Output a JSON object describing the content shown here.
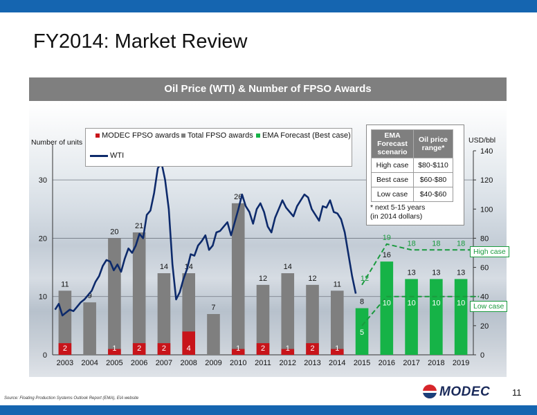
{
  "slide": {
    "title": "FY2014: Market Review",
    "panel_title": "Oil Price (WTI) & Number of FPSO Awards",
    "source": "Source: Floating Production Systems Outlook Report (EMA), EIA website",
    "page_number": "11",
    "logo_text": "MODEC"
  },
  "colors": {
    "header_bar": "#1565b0",
    "modec": "#c8141a",
    "total": "#7f7f7f",
    "forecast": "#16b347",
    "wti": "#0d2a6b",
    "forecast_dash": "#1a9a3e"
  },
  "legend": {
    "modec": "MODEC FPSO awards",
    "total": "Total FPSO awards",
    "forecast": "EMA Forecast (Best case)",
    "wti": "WTI"
  },
  "scenario_table": {
    "headers": [
      "EMA Forecast scenario",
      "Oil price range*"
    ],
    "rows": [
      [
        "High case",
        "$80-$110"
      ],
      [
        "Best case",
        "$60-$80"
      ],
      [
        "Low case",
        "$40-$60"
      ]
    ],
    "note_lines": [
      "* next 5-15 years",
      "(in 2014 dollars)"
    ]
  },
  "tags": {
    "high": "High case",
    "low": "Low case"
  },
  "chart_data": {
    "type": "bar",
    "categories": [
      "2003",
      "2004",
      "2005",
      "2006",
      "2007",
      "2008",
      "2009",
      "2010",
      "2011",
      "2012",
      "2013",
      "2014",
      "2015",
      "2016",
      "2017",
      "2018",
      "2019"
    ],
    "ylabel_left": "Number of units",
    "ylabel_right": "USD/bbl",
    "ylim_left": [
      0,
      35
    ],
    "yticks_left": [
      0,
      10,
      20,
      30
    ],
    "ylim_right": [
      0,
      140
    ],
    "yticks_right": [
      0,
      20,
      40,
      60,
      80,
      100,
      120,
      140
    ],
    "series": [
      {
        "name": "Total FPSO awards",
        "values": [
          11,
          9,
          20,
          21,
          14,
          14,
          7,
          26,
          12,
          14,
          12,
          11,
          null,
          null,
          null,
          null,
          null
        ],
        "labels": [
          "11",
          "9",
          "20",
          "21",
          "14",
          "14",
          "7",
          "26",
          "12",
          "14",
          "12",
          "11",
          "",
          "",
          "",
          "",
          ""
        ]
      },
      {
        "name": "MODEC FPSO awards",
        "values": [
          2,
          0,
          1,
          2,
          2,
          4,
          0,
          1,
          2,
          1,
          2,
          1,
          null,
          null,
          null,
          null,
          null
        ],
        "labels": [
          "2",
          "",
          "1",
          "2",
          "2",
          "4",
          "",
          "1",
          "2",
          "1",
          "2",
          "1",
          "",
          "",
          "",
          "",
          ""
        ]
      },
      {
        "name": "EMA Forecast (Best case)",
        "values": [
          null,
          null,
          null,
          null,
          null,
          null,
          null,
          null,
          null,
          null,
          null,
          null,
          8,
          16,
          13,
          13,
          13
        ],
        "labels": [
          "",
          "",
          "",
          "",
          "",
          "",
          "",
          "",
          "",
          "",
          "",
          "",
          "8",
          "16",
          "13",
          "13",
          "13"
        ]
      }
    ],
    "forecast_high": {
      "x": [
        "2015",
        "2016",
        "2017",
        "2018",
        "2019"
      ],
      "values": [
        12,
        19,
        18,
        18,
        18
      ],
      "labels": [
        "12",
        "19",
        "18",
        "18",
        "18"
      ]
    },
    "forecast_low": {
      "x": [
        "2015",
        "2016",
        "2017",
        "2018",
        "2019"
      ],
      "values": [
        5,
        10,
        10,
        10,
        10
      ],
      "labels": [
        "5",
        "10",
        "10",
        "10",
        "10"
      ]
    },
    "wti": {
      "name": "WTI",
      "x_start": 2002.6,
      "x_end": 2014.75,
      "values": [
        31,
        35,
        27,
        29,
        31,
        30,
        33,
        36,
        38,
        41,
        44,
        50,
        54,
        61,
        65,
        64,
        58,
        62,
        57,
        66,
        73,
        70,
        75,
        83,
        80,
        96,
        99,
        111,
        128,
        132,
        120,
        100,
        62,
        38,
        43,
        52,
        59,
        69,
        68,
        75,
        78,
        82,
        72,
        75,
        84,
        85,
        88,
        91,
        82,
        91,
        100,
        110,
        102,
        98,
        90,
        100,
        104,
        98,
        88,
        84,
        94,
        100,
        106,
        101,
        98,
        95,
        102,
        106,
        110,
        108,
        100,
        96,
        92,
        102,
        101,
        106,
        98,
        97,
        93,
        84,
        69,
        54,
        42
      ]
    }
  }
}
